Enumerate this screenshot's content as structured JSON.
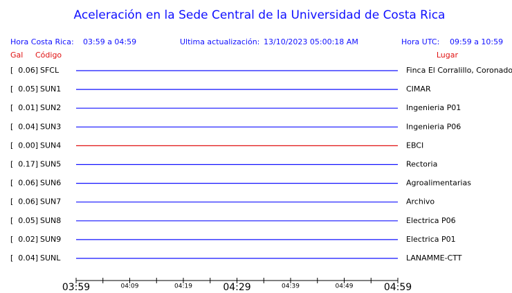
{
  "header": {
    "title": "Aceleración en la Sede Central de la Universidad de Costa Rica",
    "local_time_label": "Hora Costa Rica:",
    "local_time": "03:59 a 04:59",
    "update_label": "Ultima actualización:",
    "update": "13/10/2023 05:00:18 AM",
    "utc_label": "Hora UTC:",
    "utc_time": "09:59 a 10:59"
  },
  "columns": {
    "gal": "Gal",
    "code": "Código",
    "place": "Lugar"
  },
  "stations": [
    {
      "gal": "[  0.06]",
      "code": "SFCL",
      "place": "Finca El Corralillo, Coronado",
      "color": "#1010ff"
    },
    {
      "gal": "[  0.05]",
      "code": "SUN1",
      "place": "CIMAR",
      "color": "#1010ff"
    },
    {
      "gal": "[  0.01]",
      "code": "SUN2",
      "place": "Ingenieria P01",
      "color": "#1010ff"
    },
    {
      "gal": "[  0.04]",
      "code": "SUN3",
      "place": "Ingenieria P06",
      "color": "#1010ff"
    },
    {
      "gal": "[  0.00]",
      "code": "SUN4",
      "place": "EBCI",
      "color": "#e01010"
    },
    {
      "gal": "[  0.17]",
      "code": "SUN5",
      "place": "Rectoria",
      "color": "#1010ff"
    },
    {
      "gal": "[  0.06]",
      "code": "SUN6",
      "place": "Agroalimentarias",
      "color": "#1010ff"
    },
    {
      "gal": "[  0.06]",
      "code": "SUN7",
      "place": "Archivo",
      "color": "#1010ff"
    },
    {
      "gal": "[  0.05]",
      "code": "SUN8",
      "place": "Electrica P06",
      "color": "#1010ff"
    },
    {
      "gal": "[  0.02]",
      "code": "SUN9",
      "place": "Electrica P01",
      "color": "#1010ff"
    },
    {
      "gal": "[  0.04]",
      "code": "SUNL",
      "place": "LANAMME-CTT",
      "color": "#1010ff"
    }
  ],
  "time_axis": {
    "ticks": [
      {
        "label": "03:59",
        "major": true
      },
      {
        "label": "04:09",
        "major": false
      },
      {
        "label": "04:19",
        "major": false
      },
      {
        "label": "04:29",
        "major": true
      },
      {
        "label": "04:39",
        "major": false
      },
      {
        "label": "04:49",
        "major": false
      },
      {
        "label": "04:59",
        "major": true
      }
    ]
  }
}
